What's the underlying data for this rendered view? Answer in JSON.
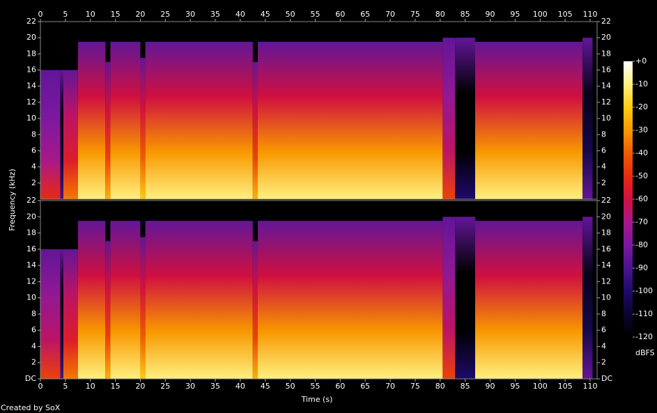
{
  "chart_data": {
    "type": "spectrogram",
    "x_label": "Time (s)",
    "y_label": "Frequency (kHz)",
    "xlim": [
      0,
      111.4
    ],
    "xticks": [
      0,
      5,
      10,
      15,
      20,
      25,
      30,
      35,
      40,
      45,
      50,
      55,
      60,
      65,
      70,
      75,
      80,
      85,
      90,
      95,
      100,
      105,
      110
    ],
    "channels": [
      {
        "ylim": [
          0,
          22
        ],
        "yticks": [
          2,
          4,
          6,
          8,
          10,
          12,
          14,
          16,
          18,
          20,
          22
        ],
        "bins": [
          0,
          4,
          4.6,
          7.5,
          13,
          14,
          20,
          21,
          42.5,
          43.5,
          80.5,
          83,
          87,
          108.5,
          110.5
        ],
        "cutoff": [
          16,
          16,
          16,
          19.5,
          17,
          19.5,
          17.5,
          19.5,
          17,
          19.5,
          20,
          20,
          19.5,
          20
        ],
        "level": [
          -50,
          -90,
          -35,
          -10,
          -25,
          -10,
          -20,
          -10,
          -25,
          -10,
          -45,
          -100,
          -10,
          -85
        ]
      },
      {
        "ylim": [
          0,
          22
        ],
        "yticks": [
          {
            "value": 0,
            "label": "DC"
          },
          2,
          4,
          6,
          8,
          10,
          12,
          14,
          16,
          18,
          20,
          22
        ],
        "bins": [
          0,
          4,
          4.6,
          7.5,
          13,
          14,
          20,
          21,
          42.5,
          43.5,
          80.5,
          83,
          87,
          108.5,
          110.5
        ],
        "cutoff": [
          16,
          16,
          16,
          19.5,
          17,
          19.5,
          17.5,
          19.5,
          17,
          19.5,
          20,
          20,
          19.5,
          20
        ],
        "level": [
          -45,
          -90,
          -35,
          -10,
          -25,
          -10,
          -20,
          -10,
          -25,
          -10,
          -45,
          -100,
          -10,
          -85
        ]
      }
    ],
    "colorbar": {
      "lim": [
        -120,
        0
      ],
      "label": "dBFS",
      "ticks": [
        {
          "value": 0,
          "label": "+0"
        },
        -10,
        -20,
        -30,
        -40,
        -50,
        -60,
        -70,
        -80,
        -90,
        -100,
        -110,
        -120
      ]
    },
    "colorscale": [
      [
        -120,
        "#000000"
      ],
      [
        -110,
        "#0a0530"
      ],
      [
        -100,
        "#1e0a6a"
      ],
      [
        -90,
        "#4a1490"
      ],
      [
        -80,
        "#7a18a0"
      ],
      [
        -70,
        "#a8188a"
      ],
      [
        -60,
        "#d01040"
      ],
      [
        -50,
        "#e82a10"
      ],
      [
        -40,
        "#f05a00"
      ],
      [
        -30,
        "#f89800"
      ],
      [
        -20,
        "#ffcc10"
      ],
      [
        -10,
        "#fff080"
      ],
      [
        0,
        "#ffffff"
      ]
    ],
    "footer": "Created by SoX"
  }
}
